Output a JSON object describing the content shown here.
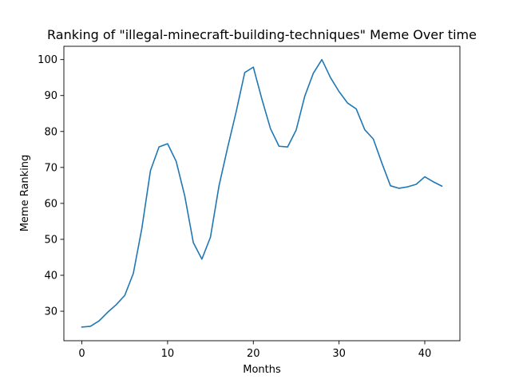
{
  "chart_data": {
    "type": "line",
    "title": "Ranking of \"illegal-minecraft-building-techniques\" Meme Over time",
    "xlabel": "Months",
    "ylabel": "Meme Ranking",
    "xlim": [
      -2.1,
      44.1
    ],
    "ylim": [
      21.8,
      103.7
    ],
    "xticks": [
      0,
      10,
      20,
      30,
      40
    ],
    "yticks": [
      30,
      40,
      50,
      60,
      70,
      80,
      90,
      100
    ],
    "grid": false,
    "series": [
      {
        "color": "#1f77b4",
        "x": [
          0,
          1,
          2,
          3,
          4,
          5,
          6,
          7,
          8,
          9,
          10,
          11,
          12,
          13,
          14,
          15,
          16,
          17,
          18,
          19,
          20,
          21,
          22,
          23,
          24,
          25,
          26,
          27,
          28,
          29,
          30,
          31,
          32,
          33,
          34,
          35,
          36,
          37,
          38,
          39,
          40,
          41,
          42
        ],
        "y": [
          25.6,
          25.8,
          27.3,
          29.7,
          31.8,
          34.4,
          40.5,
          53.1,
          69.1,
          75.7,
          76.6,
          71.7,
          62.1,
          49.1,
          44.5,
          50.6,
          64.9,
          75.5,
          85.5,
          96.4,
          97.9,
          89.0,
          80.8,
          75.9,
          75.7,
          80.4,
          89.8,
          96.2,
          100.0,
          95.0,
          91.1,
          87.9,
          86.3,
          80.5,
          77.9,
          71.2,
          64.9,
          64.2,
          64.6,
          65.3,
          67.4,
          66.0,
          64.8
        ]
      }
    ]
  }
}
